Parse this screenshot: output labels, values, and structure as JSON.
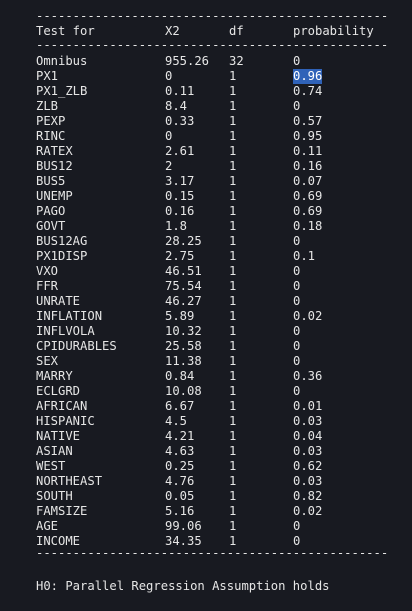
{
  "separator": "------------------------------------------------------------------------",
  "header": {
    "test_for": "Test for",
    "x2": "X2",
    "df": "df",
    "probability": "probability"
  },
  "rows": [
    {
      "test": "Omnibus",
      "x2": "955.26",
      "df": "32",
      "p": "0"
    },
    {
      "test": "PX1",
      "x2": "0",
      "df": "1",
      "p": "0.96",
      "selected": true
    },
    {
      "test": "PX1_ZLB",
      "x2": "0.11",
      "df": "1",
      "p": "0.74"
    },
    {
      "test": "ZLB",
      "x2": "8.4",
      "df": "1",
      "p": "0"
    },
    {
      "test": "PEXP",
      "x2": "0.33",
      "df": "1",
      "p": "0.57"
    },
    {
      "test": "RINC",
      "x2": "0",
      "df": "1",
      "p": "0.95"
    },
    {
      "test": "RATEX",
      "x2": "2.61",
      "df": "1",
      "p": "0.11"
    },
    {
      "test": "BUS12",
      "x2": "2",
      "df": "1",
      "p": "0.16"
    },
    {
      "test": "BUS5",
      "x2": "3.17",
      "df": "1",
      "p": "0.07"
    },
    {
      "test": "UNEMP",
      "x2": "0.15",
      "df": "1",
      "p": "0.69"
    },
    {
      "test": "PAGO",
      "x2": "0.16",
      "df": "1",
      "p": "0.69"
    },
    {
      "test": "GOVT",
      "x2": "1.8",
      "df": "1",
      "p": "0.18"
    },
    {
      "test": "BUS12AG",
      "x2": "28.25",
      "df": "1",
      "p": "0"
    },
    {
      "test": "PX1DISP",
      "x2": "2.75",
      "df": "1",
      "p": "0.1"
    },
    {
      "test": "VXO",
      "x2": "46.51",
      "df": "1",
      "p": "0"
    },
    {
      "test": "FFR",
      "x2": "75.54",
      "df": "1",
      "p": "0"
    },
    {
      "test": "UNRATE",
      "x2": "46.27",
      "df": "1",
      "p": "0"
    },
    {
      "test": "INFLATION",
      "x2": "5.89",
      "df": "1",
      "p": "0.02"
    },
    {
      "test": "INFLVOLA",
      "x2": "10.32",
      "df": "1",
      "p": "0"
    },
    {
      "test": "CPIDURABLES",
      "x2": "25.58",
      "df": "1",
      "p": "0"
    },
    {
      "test": "SEX",
      "x2": "11.38",
      "df": "1",
      "p": "0"
    },
    {
      "test": "MARRY",
      "x2": "0.84",
      "df": "1",
      "p": "0.36"
    },
    {
      "test": "ECLGRD",
      "x2": "10.08",
      "df": "1",
      "p": "0"
    },
    {
      "test": "AFRICAN",
      "x2": "6.67",
      "df": "1",
      "p": "0.01"
    },
    {
      "test": "HISPANIC",
      "x2": "4.5",
      "df": "1",
      "p": "0.03"
    },
    {
      "test": "NATIVE",
      "x2": "4.21",
      "df": "1",
      "p": "0.04"
    },
    {
      "test": "ASIAN",
      "x2": "4.63",
      "df": "1",
      "p": "0.03"
    },
    {
      "test": "WEST",
      "x2": "0.25",
      "df": "1",
      "p": "0.62"
    },
    {
      "test": "NORTHEAST",
      "x2": "4.76",
      "df": "1",
      "p": "0.03"
    },
    {
      "test": "SOUTH",
      "x2": "0.05",
      "df": "1",
      "p": "0.82"
    },
    {
      "test": "FAMSIZE",
      "x2": "5.16",
      "df": "1",
      "p": "0.02"
    },
    {
      "test": "AGE",
      "x2": "99.06",
      "df": "1",
      "p": "0"
    },
    {
      "test": "INCOME",
      "x2": "34.35",
      "df": "1",
      "p": "0"
    }
  ],
  "footer": "H0: Parallel Regression Assumption holds"
}
